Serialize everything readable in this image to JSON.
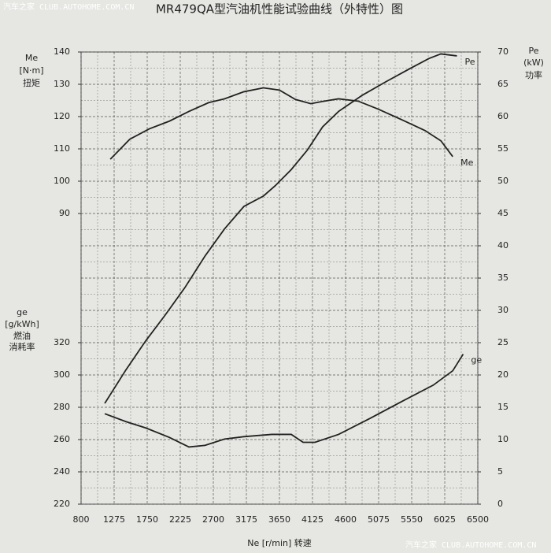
{
  "chart_data": {
    "type": "line",
    "title": "MR479QA型汽油机性能试验曲线（外特性）图",
    "watermarks": [
      "汽车之家 CLUB.AUTOHOME.COM.CN",
      "汽车之家 CLUB.AUTOHOME.COM.CN"
    ],
    "xlabel": "Ne [r/min] 转速",
    "ylabel": [
      "Me",
      "[N·m]",
      "扭矩"
    ],
    "y3label": [
      "ge",
      "[g/kWh]",
      "燃油",
      "消耗率"
    ],
    "y2label": [
      "Pe",
      "(kW)",
      "功率"
    ],
    "xlim": [
      800,
      6500
    ],
    "xticks": [
      800,
      1275,
      1750,
      2225,
      2700,
      3175,
      3650,
      4125,
      4600,
      5075,
      5550,
      6025,
      6500
    ],
    "ylim": [
      90,
      140
    ],
    "yticks": [
      90,
      100,
      110,
      120,
      130,
      140
    ],
    "y3lim": [
      220,
      320
    ],
    "y3ticks": [
      220,
      240,
      260,
      280,
      300,
      320
    ],
    "y2lim": [
      0,
      70
    ],
    "y2ticks": [
      0,
      5,
      10,
      15,
      20,
      25,
      30,
      35,
      40,
      45,
      50,
      55,
      60,
      65,
      70
    ],
    "grid": true,
    "series": [
      {
        "name": "Pe",
        "color": "#222222",
        "axis": "y2",
        "x": [
          1140,
          1445,
          1730,
          2010,
          2290,
          2580,
          2860,
          3140,
          3420,
          3590,
          3820,
          4050,
          4270,
          4500,
          4840,
          5180,
          5520,
          5800,
          5970,
          6200
        ],
        "values": [
          15.6,
          20.8,
          25.3,
          29.3,
          33.5,
          38.4,
          42.6,
          46.1,
          47.7,
          49.3,
          51.8,
          54.8,
          58.4,
          60.8,
          63.3,
          65.4,
          67.4,
          69,
          69.7,
          69.4
        ]
      },
      {
        "name": "Me",
        "color": "#222222",
        "axis": "y",
        "x": [
          1220,
          1500,
          1780,
          2070,
          2350,
          2630,
          2860,
          3140,
          3420,
          3650,
          3880,
          4100,
          4270,
          4500,
          4780,
          5070,
          5400,
          5740,
          5970,
          6140
        ],
        "values": [
          106.8,
          113,
          116.2,
          118.6,
          121.6,
          124.3,
          125.5,
          127.7,
          128.9,
          128.2,
          125.3,
          124,
          124.7,
          125.5,
          124.8,
          122.3,
          119.1,
          115.7,
          112.5,
          107.6
        ]
      },
      {
        "name": "ge",
        "color": "#222222",
        "axis": "y3",
        "x": [
          1140,
          1445,
          1730,
          2070,
          2350,
          2580,
          2860,
          3140,
          3540,
          3820,
          3990,
          4160,
          4500,
          4950,
          5400,
          5860,
          6140,
          6290
        ],
        "values": [
          276,
          271.1,
          267.2,
          261.3,
          255.4,
          256.4,
          260.3,
          261.8,
          263.2,
          263.2,
          258.3,
          258.3,
          263.2,
          273.1,
          283.4,
          293.7,
          302.6,
          312.9
        ]
      }
    ]
  }
}
